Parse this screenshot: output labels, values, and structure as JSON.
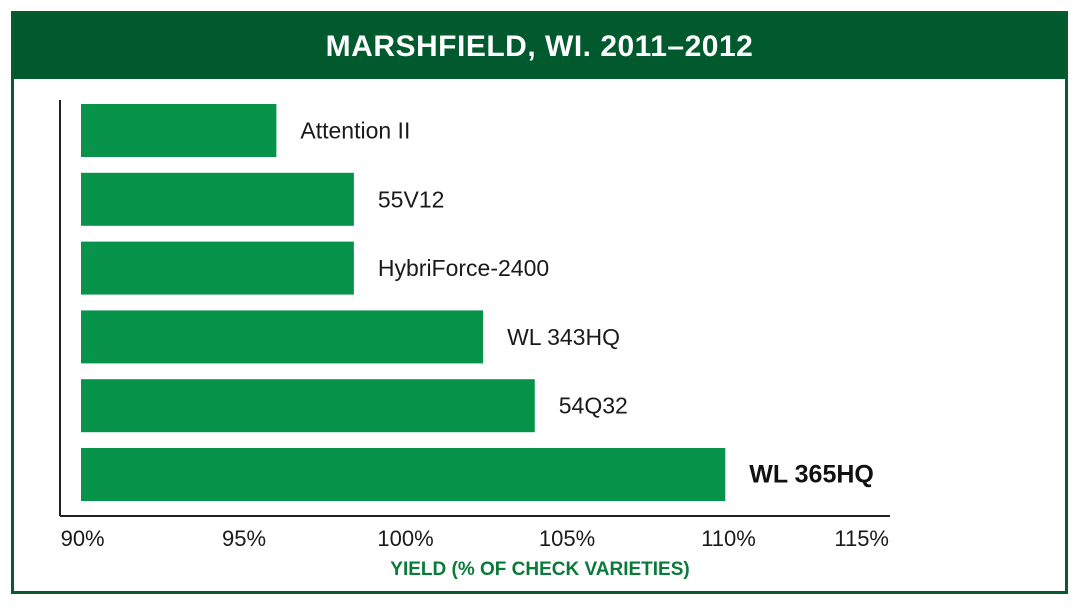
{
  "chart_data": {
    "type": "bar",
    "orientation": "horizontal",
    "title": "MARSHFIELD, WI. 2011–2012",
    "xlabel": "YIELD (% OF CHECK VARIETIES)",
    "ylabel": "",
    "categories": [
      "Attention II",
      "55V12",
      "HybriForce-2400",
      "WL 343HQ",
      "54Q32",
      "WL 365HQ"
    ],
    "values": [
      96.0,
      98.4,
      98.4,
      102.4,
      104.0,
      109.9
    ],
    "highlight": "WL 365HQ",
    "xlim": [
      89.3,
      115
    ],
    "xticks": [
      90,
      95,
      100,
      105,
      110,
      115
    ],
    "xtick_labels": [
      "90%",
      "95%",
      "100%",
      "105%",
      "110%",
      "115%"
    ],
    "bar_color": "#07934a",
    "banner_color": "#005a2e",
    "axis_title_color": "#0a7a3a",
    "grid": false,
    "legend": "none"
  }
}
